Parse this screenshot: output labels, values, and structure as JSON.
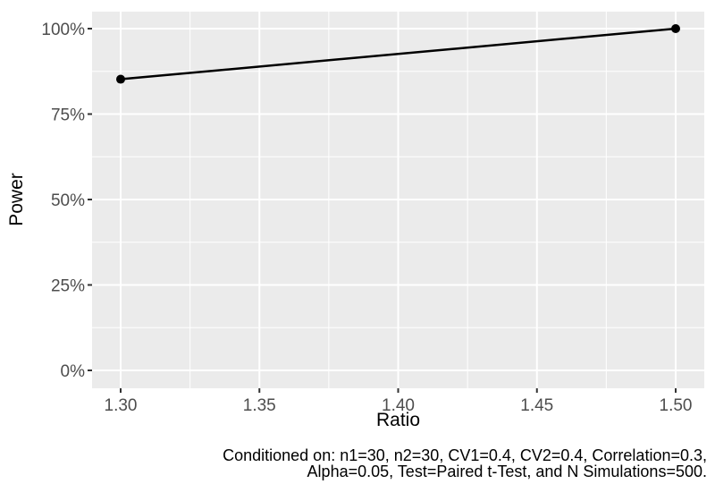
{
  "chart_data": {
    "type": "line",
    "title": "",
    "xlabel": "Ratio",
    "ylabel": "Power",
    "x": [
      1.3,
      1.5
    ],
    "series": [
      {
        "name": "Power",
        "values_percent": [
          85.2,
          100.0
        ]
      }
    ],
    "x_tick_values": [
      1.3,
      1.35,
      1.4,
      1.45,
      1.5
    ],
    "x_tick_labels": [
      "1.30",
      "1.35",
      "1.40",
      "1.45",
      "1.50"
    ],
    "x_minor_tick_values": [
      1.325,
      1.375,
      1.425,
      1.475
    ],
    "y_tick_values": [
      0,
      25,
      50,
      75,
      100
    ],
    "y_tick_labels": [
      "0%",
      "25%",
      "50%",
      "75%",
      "100%"
    ],
    "y_minor_tick_values": [
      12.5,
      37.5,
      62.5,
      87.5
    ],
    "xlim": [
      1.3,
      1.5
    ],
    "ylim_percent": [
      0,
      100
    ],
    "grid": "major-and-minor",
    "legend": "none",
    "colors": {
      "panel_background": "#EBEBEB",
      "grid_major": "#FFFFFF",
      "grid_minor": "#FFFFFF",
      "line": "#000000",
      "point": "#000000",
      "tick_mark": "#333333",
      "tick_label": "#4D4D4D",
      "axis_title": "#000000",
      "caption": "#000000",
      "figure_background": "#FFFFFF"
    }
  },
  "caption": {
    "line1": "Conditioned on: n1=30, n2=30, CV1=0.4, CV2=0.4, Correlation=0.3,",
    "line2": "Alpha=0.05, Test=Paired t-Test, and N Simulations=500."
  }
}
